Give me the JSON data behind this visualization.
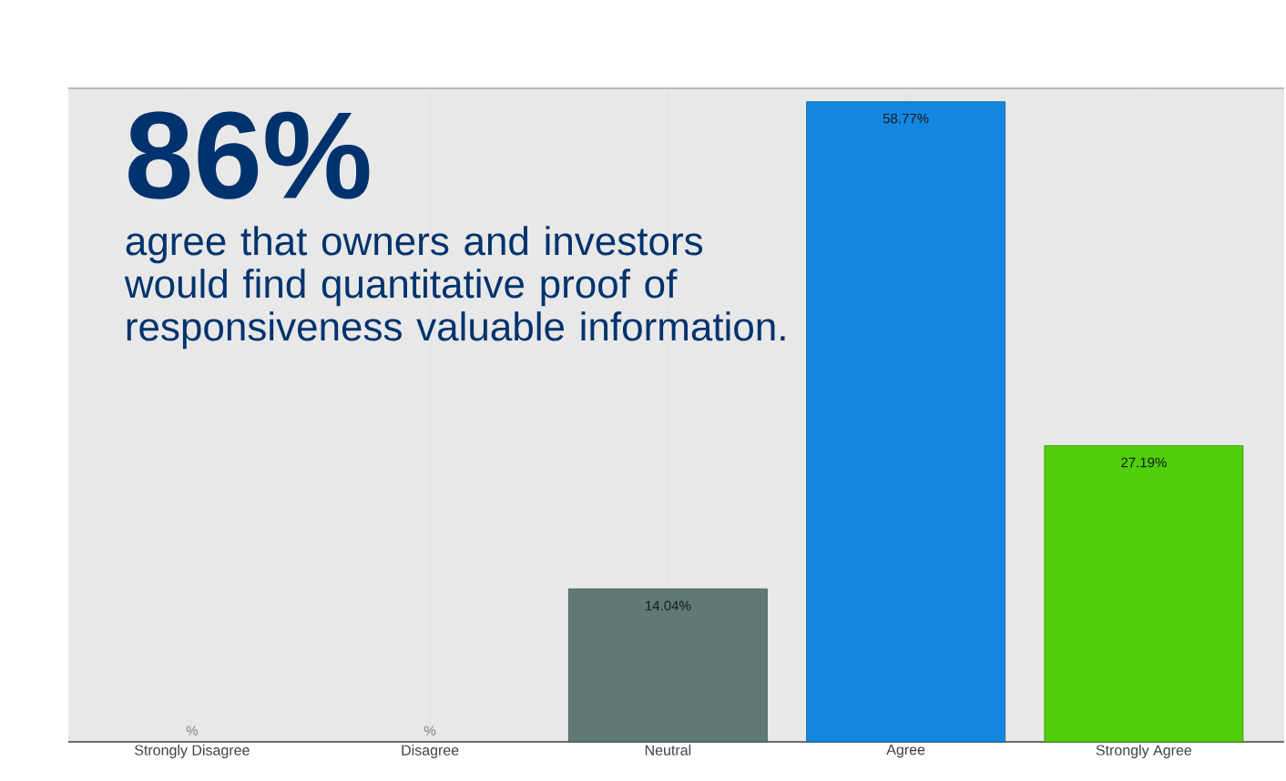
{
  "chart_data": {
    "type": "bar",
    "title": "86%",
    "subtitle": "agree that owners and investors would find quantitative proof of responsiveness valuable information.",
    "categories": [
      "Strongly Disagree",
      "Disagree",
      "Neutral",
      "Agree",
      "Strongly Agree"
    ],
    "values": [
      null,
      null,
      14.04,
      58.77,
      27.19
    ],
    "colors": [
      "#5f7a75",
      "#5f7a75",
      "#5f7a75",
      "#1488e0",
      "#4fcf0a"
    ],
    "value_labels": [
      "%",
      "%",
      "14.04%",
      "58.77%",
      "27.19%"
    ],
    "ylim": [
      0,
      60
    ],
    "grid": "x"
  }
}
